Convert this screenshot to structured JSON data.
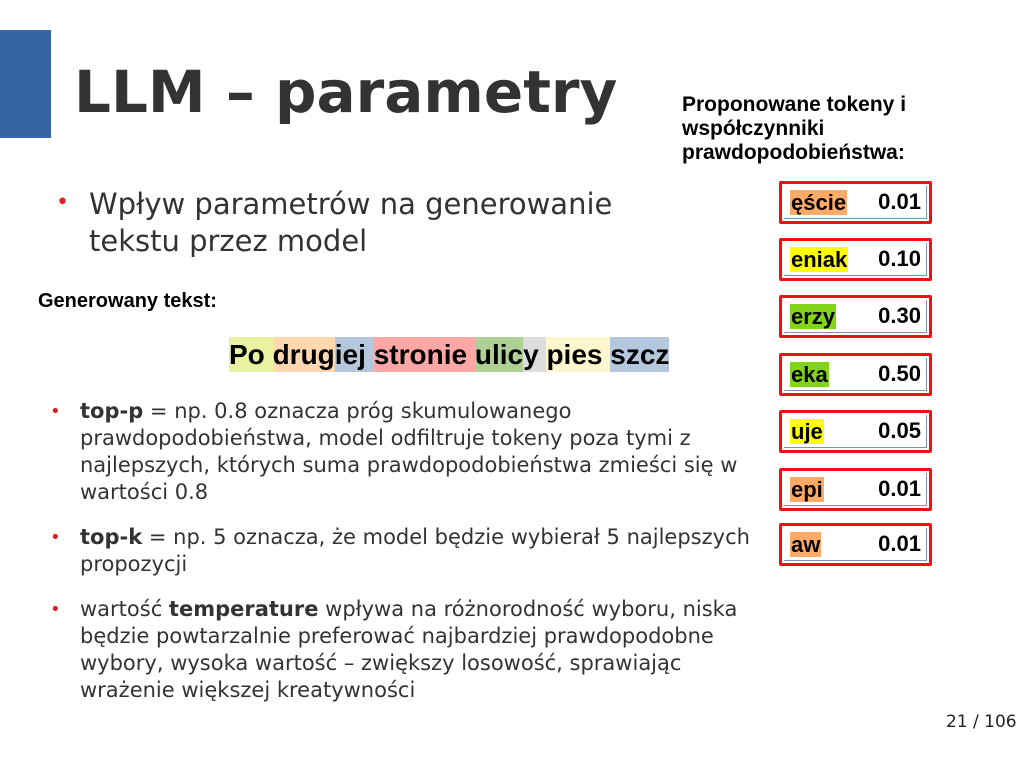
{
  "title": "LLM – parametry",
  "subtitle": "Wpływ parametrów na generowanie tekstu przez model",
  "generated_label": "Generowany tekst:",
  "generated_segments": [
    {
      "text": "Po ",
      "color": "#e8f2a1"
    },
    {
      "text": "drug",
      "color": "#ffd8b0"
    },
    {
      "text": "iej ",
      "color": "#b4c7dc"
    },
    {
      "text": "stronie ",
      "color": "#ffa6a6"
    },
    {
      "text": "ulic",
      "color": "#afd095"
    },
    {
      "text": "y ",
      "color": "#dddddd"
    },
    {
      "text": "pies ",
      "color": "#fff5ce"
    },
    {
      "text": "szcz",
      "color": "#b4c7dc"
    }
  ],
  "bullets": [
    {
      "bold": "top-p",
      "pre": "",
      "text": " = np. 0.8 oznacza próg skumulowanego prawdopodobieństwa, model odfiltruje tokeny poza tymi z najlepszych, których suma prawdopodobieństwa zmieści się w wartości 0.8"
    },
    {
      "bold": "top-k",
      "pre": "",
      "text": " = np. 5 oznacza, że model będzie wybierał 5 najlepszych propozycji"
    },
    {
      "pre": "wartość ",
      "bold": "temperature",
      "text": " wpływa na różnorodność wyboru, niska będzie powtarzalnie preferować najbardziej prawdopodobne wybory, wysoka wartość – zwiększy losowość, sprawiając wrażenie większej kreatywności"
    }
  ],
  "proposals_heading": "Proponowane tokeny i współczynniki prawdopodobieństwa:",
  "tokens": [
    {
      "token": "ęście",
      "prob": "0.01",
      "color": "#ffaa66"
    },
    {
      "token": "eniak",
      "prob": "0.10",
      "color": "#ffff00"
    },
    {
      "token": "erzy",
      "prob": "0.30",
      "color": "#81d41a"
    },
    {
      "token": "eka",
      "prob": "0.50",
      "color": "#81d41a"
    },
    {
      "token": "uje",
      "prob": "0.05",
      "color": "#ffff00"
    },
    {
      "token": "epi",
      "prob": "0.01",
      "color": "#ffaa66"
    },
    {
      "token": "aw",
      "prob": "0.01",
      "color": "#ffaa66"
    }
  ],
  "page_number": "21 / 106",
  "accent_color": "#3465a4"
}
